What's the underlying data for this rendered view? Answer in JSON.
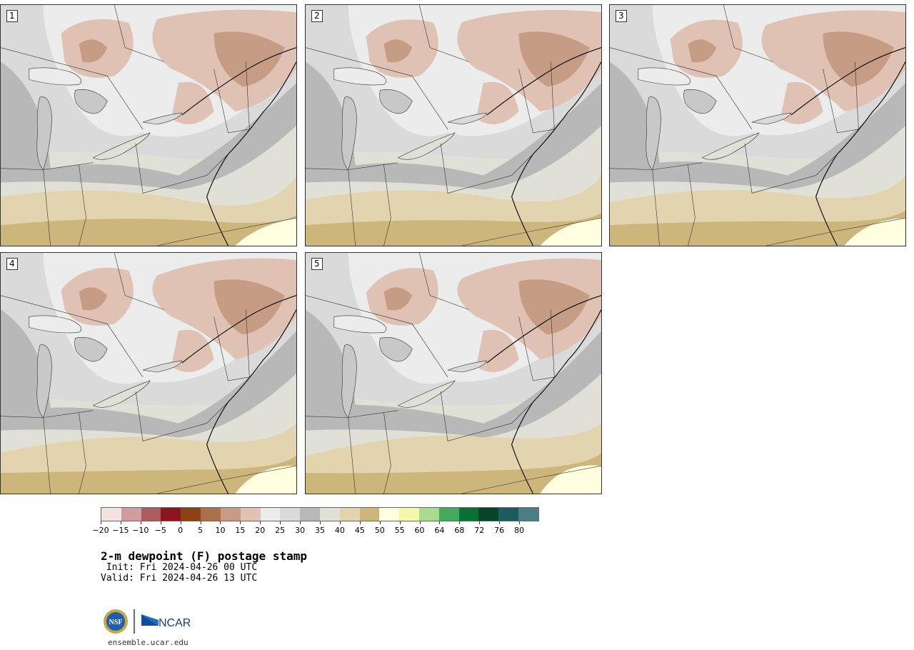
{
  "panels": [
    {
      "label": "1"
    },
    {
      "label": "2"
    },
    {
      "label": "3"
    },
    {
      "label": "4"
    },
    {
      "label": "5"
    }
  ],
  "colorbar": {
    "colors": [
      "#f3e3e3",
      "#d09ca0",
      "#ad5a60",
      "#8c1620",
      "#8c4212",
      "#ad704c",
      "#c79c84",
      "#dfc2b4",
      "#ececec",
      "#dadada",
      "#b8b8b8",
      "#e0e0d6",
      "#e2d4ae",
      "#cdb67c",
      "#ffffe0",
      "#f4f8a8",
      "#a8dc8c",
      "#46aa5e",
      "#087236",
      "#0a4426",
      "#1e5a5e",
      "#4a7e82"
    ],
    "ticks": [
      "−20",
      "−15",
      "−10",
      "−5",
      "0",
      "5",
      "10",
      "15",
      "20",
      "25",
      "30",
      "35",
      "40",
      "45",
      "50",
      "55",
      "60",
      "64",
      "68",
      "72",
      "76",
      "80"
    ]
  },
  "title": "2-m dewpoint (F) postage stamp",
  "init": " Init: Fri 2024-04-26 00 UTC",
  "valid": "Valid: Fri 2024-04-26 13 UTC",
  "logo": {
    "left": "NSF",
    "right": "NCAR"
  },
  "url": "ensemble.ucar.edu"
}
